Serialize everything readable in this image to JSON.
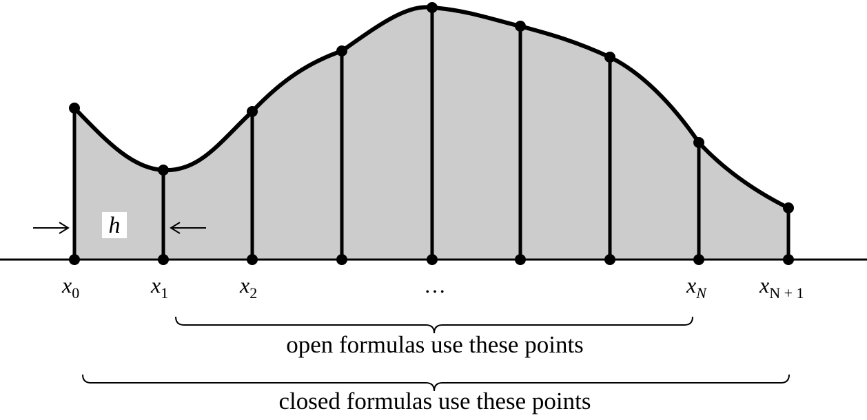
{
  "diagram": {
    "step_label": "h",
    "point_labels": [
      {
        "main": "x",
        "sub": "0"
      },
      {
        "main": "x",
        "sub": "1"
      },
      {
        "main": "x",
        "sub": "2"
      },
      {
        "main": "…",
        "sub": ""
      },
      {
        "main": "x",
        "sub": "N"
      },
      {
        "main": "x",
        "sub": "N + 1"
      }
    ],
    "open_caption": "open formulas use these points",
    "closed_caption": "closed formulas use these points",
    "colors": {
      "fill": "#cccccc",
      "stroke": "#000000",
      "background": "#ffffff"
    }
  }
}
